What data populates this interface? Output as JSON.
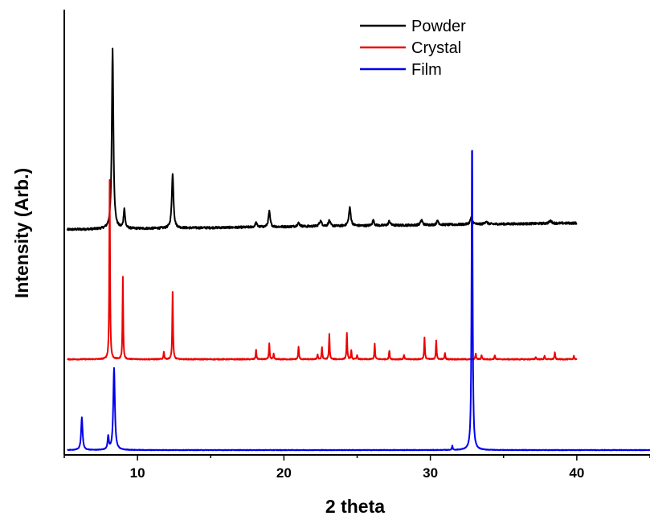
{
  "chart_data": {
    "type": "line",
    "title": "",
    "xlabel": "2 theta",
    "ylabel": "Intensity (Arb.)",
    "xlim": [
      5,
      45
    ],
    "x_ticks": [
      10,
      20,
      30,
      40
    ],
    "y_ticks": [],
    "y_scale": "arbitrary, vertically offset stacked patterns",
    "grid": false,
    "legend_position": "top-center",
    "series": [
      {
        "name": "Powder",
        "color": "#000000",
        "x_range": [
          5.2,
          40
        ],
        "baseline": 0.51,
        "baseline_end": 0.525,
        "noise": 0.0025,
        "peaks": [
          [
            8.3,
            0.415,
            0.13
          ],
          [
            9.1,
            0.045,
            0.12
          ],
          [
            12.4,
            0.125,
            0.14
          ],
          [
            18.1,
            0.01,
            0.15
          ],
          [
            19.0,
            0.036,
            0.14
          ],
          [
            21.0,
            0.008,
            0.2
          ],
          [
            22.5,
            0.012,
            0.2
          ],
          [
            23.1,
            0.013,
            0.15
          ],
          [
            24.5,
            0.042,
            0.16
          ],
          [
            26.1,
            0.012,
            0.15
          ],
          [
            27.2,
            0.01,
            0.15
          ],
          [
            29.4,
            0.012,
            0.15
          ],
          [
            30.5,
            0.01,
            0.15
          ],
          [
            32.8,
            0.016,
            0.18
          ],
          [
            33.8,
            0.006,
            0.2
          ],
          [
            38.2,
            0.006,
            0.2
          ]
        ]
      },
      {
        "name": "Crystal",
        "color": "#ee0000",
        "x_range": [
          5.2,
          40
        ],
        "baseline": 0.21,
        "baseline_end": 0.21,
        "noise": 0.0012,
        "peaks": [
          [
            8.1,
            0.415,
            0.06
          ],
          [
            9.0,
            0.19,
            0.055
          ],
          [
            11.8,
            0.018,
            0.06
          ],
          [
            12.4,
            0.155,
            0.06
          ],
          [
            18.1,
            0.022,
            0.06
          ],
          [
            19.0,
            0.038,
            0.06
          ],
          [
            19.3,
            0.012,
            0.06
          ],
          [
            21.0,
            0.03,
            0.06
          ],
          [
            22.3,
            0.012,
            0.06
          ],
          [
            22.6,
            0.028,
            0.06
          ],
          [
            23.1,
            0.058,
            0.06
          ],
          [
            24.3,
            0.06,
            0.06
          ],
          [
            24.6,
            0.02,
            0.06
          ],
          [
            25.0,
            0.01,
            0.06
          ],
          [
            26.2,
            0.035,
            0.06
          ],
          [
            27.2,
            0.02,
            0.06
          ],
          [
            28.2,
            0.01,
            0.06
          ],
          [
            29.6,
            0.05,
            0.06
          ],
          [
            30.4,
            0.044,
            0.06
          ],
          [
            31.0,
            0.015,
            0.06
          ],
          [
            33.1,
            0.014,
            0.06
          ],
          [
            33.5,
            0.01,
            0.06
          ],
          [
            34.4,
            0.01,
            0.06
          ],
          [
            37.2,
            0.006,
            0.06
          ],
          [
            37.8,
            0.008,
            0.06
          ],
          [
            38.5,
            0.016,
            0.06
          ],
          [
            39.8,
            0.008,
            0.06
          ]
        ]
      },
      {
        "name": "Film",
        "color": "#0000ee",
        "x_range": [
          5.2,
          45
        ],
        "baseline": 0.0,
        "baseline_end": 0.0,
        "noise": 0.0006,
        "peaks": [
          [
            6.2,
            0.075,
            0.12
          ],
          [
            8.4,
            0.19,
            0.13
          ],
          [
            8.0,
            0.03,
            0.1
          ],
          [
            31.5,
            0.01,
            0.06
          ],
          [
            32.85,
            0.735,
            0.08
          ]
        ]
      }
    ]
  }
}
